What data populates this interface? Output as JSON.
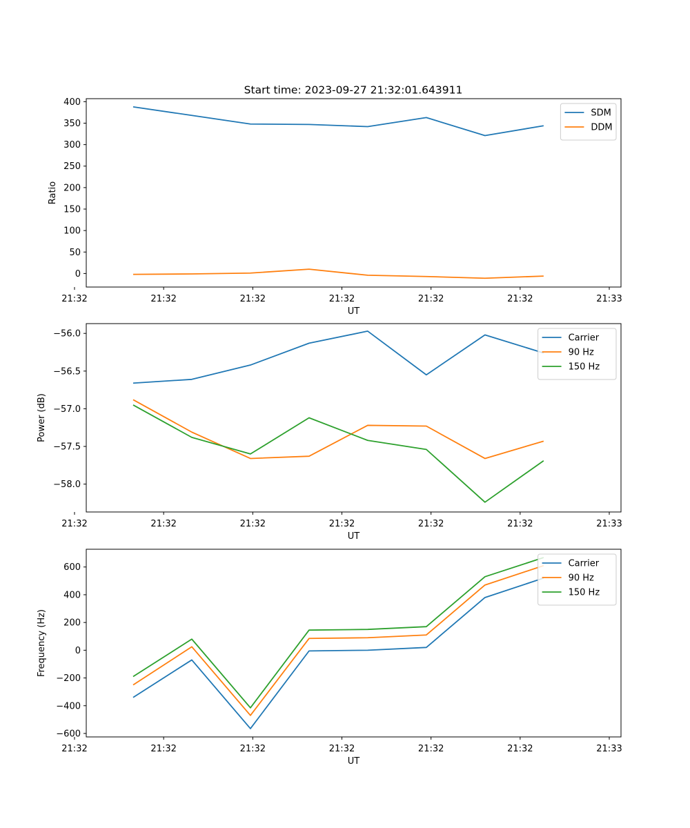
{
  "figure": {
    "title": "Start time: 2023-09-27 21:32:01.643911"
  },
  "colors": {
    "blue": "#1f77b4",
    "orange": "#ff7f0e",
    "green": "#2ca02c"
  },
  "chart_data": [
    {
      "type": "line",
      "title": "Start time: 2023-09-27 21:32:01.643911",
      "xlabel": "UT",
      "ylabel": "Ratio",
      "x": [
        1,
        2,
        3,
        4,
        5,
        6,
        7,
        8
      ],
      "xlim": [
        0.2,
        9.32
      ],
      "ylim": [
        -31.5,
        407
      ],
      "xticks": [
        0.0,
        1.52,
        3.04,
        4.56,
        6.08,
        7.6,
        9.12
      ],
      "xtick_labels": [
        "21:32",
        "21:32",
        "21:32",
        "21:32",
        "21:32",
        "21:32",
        "21:33"
      ],
      "yticks": [
        0,
        50,
        100,
        150,
        200,
        250,
        300,
        350,
        400
      ],
      "ytick_labels": [
        "0",
        "50",
        "100",
        "150",
        "200",
        "250",
        "300",
        "350",
        "400"
      ],
      "legend_position": "top-right",
      "series": [
        {
          "name": "SDM",
          "color": "blue",
          "values": [
            388,
            368,
            348,
            347,
            342,
            363,
            321,
            344
          ]
        },
        {
          "name": "DDM",
          "color": "orange",
          "values": [
            -2,
            -1,
            1,
            10,
            -4,
            -7,
            -11,
            -6
          ]
        }
      ]
    },
    {
      "type": "line",
      "title": "",
      "xlabel": "UT",
      "ylabel": "Power (dB)",
      "x": [
        1,
        2,
        3,
        4,
        5,
        6,
        7,
        8
      ],
      "xlim": [
        0.2,
        9.32
      ],
      "ylim": [
        -58.37,
        -55.87
      ],
      "xticks": [
        0.0,
        1.52,
        3.04,
        4.56,
        6.08,
        7.6,
        9.12
      ],
      "xtick_labels": [
        "21:32",
        "21:32",
        "21:32",
        "21:32",
        "21:32",
        "21:32",
        "21:33"
      ],
      "yticks": [
        -58.0,
        -57.5,
        -57.0,
        -56.5,
        -56.0
      ],
      "ytick_labels": [
        "−58.0",
        "−57.5",
        "−57.0",
        "−56.5",
        "−56.0"
      ],
      "legend_position": "top-right",
      "series": [
        {
          "name": "Carrier",
          "color": "blue",
          "values": [
            -56.66,
            -56.61,
            -56.42,
            -56.13,
            -55.97,
            -56.55,
            -56.02,
            -56.26
          ]
        },
        {
          "name": "90 Hz",
          "color": "orange",
          "values": [
            -56.88,
            -57.31,
            -57.66,
            -57.63,
            -57.22,
            -57.23,
            -57.66,
            -57.43
          ]
        },
        {
          "name": "150 Hz",
          "color": "green",
          "values": [
            -56.95,
            -57.38,
            -57.6,
            -57.12,
            -57.42,
            -57.54,
            -58.24,
            -57.69
          ]
        }
      ]
    },
    {
      "type": "line",
      "title": "",
      "xlabel": "UT",
      "ylabel": "Frequency (Hz)",
      "x": [
        1,
        2,
        3,
        4,
        5,
        6,
        7,
        8
      ],
      "xlim": [
        0.2,
        9.32
      ],
      "ylim": [
        -625,
        728
      ],
      "xticks": [
        0.0,
        1.52,
        3.04,
        4.56,
        6.08,
        7.6,
        9.12
      ],
      "xtick_labels": [
        "21:32",
        "21:32",
        "21:32",
        "21:32",
        "21:32",
        "21:32",
        "21:33"
      ],
      "yticks": [
        -600,
        -400,
        -200,
        0,
        200,
        400,
        600
      ],
      "ytick_labels": [
        "−600",
        "−400",
        "−200",
        "0",
        "200",
        "400",
        "600"
      ],
      "legend_position": "top-right",
      "series": [
        {
          "name": "Carrier",
          "color": "blue",
          "values": [
            -340,
            -70,
            -565,
            -5,
            0,
            20,
            380,
            520
          ]
        },
        {
          "name": "90 Hz",
          "color": "orange",
          "values": [
            -250,
            25,
            -470,
            85,
            90,
            110,
            470,
            610
          ]
        },
        {
          "name": "150 Hz",
          "color": "green",
          "values": [
            -190,
            80,
            -415,
            145,
            150,
            170,
            530,
            668
          ]
        }
      ]
    }
  ]
}
